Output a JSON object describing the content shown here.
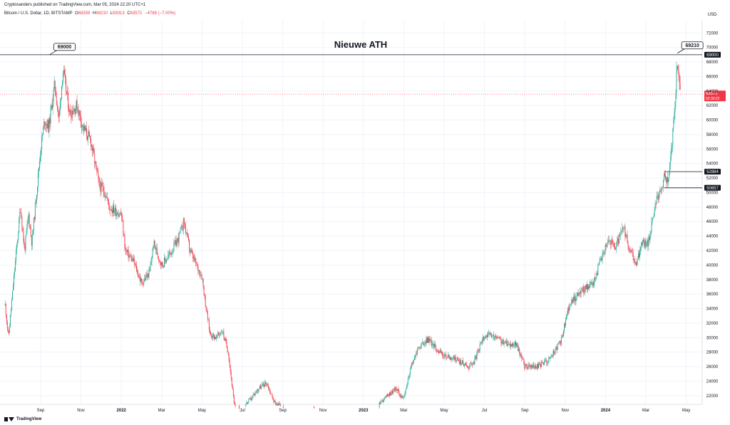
{
  "header": {
    "publisher": "Cryptosanders published on TradingView.com, Mar 05, 2024 22:20 UTC+1",
    "symbol": "Bitcoin / U.S. Dollar, 1D, BITSTAMP",
    "o_label": "O",
    "o_value": "68359",
    "h_label": "H",
    "h_value": "69210",
    "l_label": "L",
    "l_value": "59313",
    "c_label": "C",
    "c_value": "63571",
    "change": "−4788 (−7.00%)"
  },
  "footer": {
    "brand": "TradingView"
  },
  "chart_data": {
    "type": "candlestick",
    "title": "Nieuwe ATH",
    "currency_label": "USD",
    "y_ticks": [
      22000,
      24000,
      26000,
      28000,
      30000,
      32000,
      34000,
      36000,
      38000,
      40000,
      42000,
      44000,
      46000,
      48000,
      50000,
      52000,
      54000,
      56000,
      58000,
      60000,
      62000,
      64000,
      66000,
      68000,
      70000,
      72000
    ],
    "ylim": [
      20800,
      73800
    ],
    "x_ticks": [
      "Sep",
      "Nov",
      "2022",
      "Mar",
      "May",
      "Jul",
      "Sep",
      "Nov",
      "2023",
      "Mar",
      "May",
      "Jul",
      "Sep",
      "Nov",
      "2024",
      "Mar",
      "May"
    ],
    "callouts": [
      {
        "label": "69000",
        "value": 69000,
        "date_index": 0.22
      },
      {
        "label": "69210",
        "value": 69210,
        "date_index": 15.78
      }
    ],
    "horizontal_levels": [
      {
        "label": "69000",
        "value": 69000
      },
      {
        "label": "52884",
        "value": 52884
      },
      {
        "label": "50657",
        "value": 50657
      }
    ],
    "current_price": {
      "label": "63571",
      "countdown": "02:39:22",
      "value": 63571
    },
    "path_points": [
      [
        -0.88,
        34500
      ],
      [
        -0.8,
        30000
      ],
      [
        -0.7,
        36000
      ],
      [
        -0.5,
        48000
      ],
      [
        -0.4,
        42000
      ],
      [
        -0.3,
        47000
      ],
      [
        -0.22,
        43000
      ],
      [
        0.0,
        56000
      ],
      [
        0.1,
        60000
      ],
      [
        0.2,
        59000
      ],
      [
        0.35,
        65000
      ],
      [
        0.45,
        60000
      ],
      [
        0.55,
        67000
      ],
      [
        0.72,
        61000
      ],
      [
        0.9,
        62000
      ],
      [
        1.05,
        59000
      ],
      [
        1.25,
        57000
      ],
      [
        1.45,
        51000
      ],
      [
        1.6,
        50000
      ],
      [
        1.7,
        48000
      ],
      [
        2.0,
        47000
      ],
      [
        2.1,
        42000
      ],
      [
        2.3,
        40500
      ],
      [
        2.5,
        37500
      ],
      [
        2.7,
        39000
      ],
      [
        2.8,
        43000
      ],
      [
        3.0,
        40000
      ],
      [
        3.2,
        41500
      ],
      [
        3.4,
        43500
      ],
      [
        3.55,
        46000
      ],
      [
        3.7,
        42000
      ],
      [
        3.9,
        39500
      ],
      [
        4.0,
        38500
      ],
      [
        4.1,
        34000
      ],
      [
        4.2,
        30500
      ],
      [
        4.35,
        30000
      ],
      [
        4.5,
        31000
      ],
      [
        4.65,
        28000
      ],
      [
        4.8,
        20500
      ],
      [
        5.0,
        20300
      ],
      [
        5.2,
        21500
      ],
      [
        5.4,
        23000
      ],
      [
        5.6,
        23800
      ],
      [
        5.8,
        21000
      ],
      [
        6.1,
        20200
      ],
      [
        6.3,
        19800
      ],
      [
        6.6,
        19700
      ],
      [
        6.8,
        20500
      ],
      [
        7.1,
        19000
      ],
      [
        7.4,
        16800
      ],
      [
        7.8,
        16800
      ],
      [
        8.2,
        16600
      ],
      [
        8.4,
        21000
      ],
      [
        8.8,
        23000
      ],
      [
        9.0,
        21500
      ],
      [
        9.15,
        25500
      ],
      [
        9.35,
        28500
      ],
      [
        9.6,
        29800
      ],
      [
        9.8,
        28500
      ],
      [
        10.0,
        27500
      ],
      [
        10.3,
        27000
      ],
      [
        10.6,
        26000
      ],
      [
        10.75,
        26800
      ],
      [
        11.0,
        30400
      ],
      [
        11.3,
        30000
      ],
      [
        11.5,
        29200
      ],
      [
        11.8,
        29000
      ],
      [
        12.0,
        26000
      ],
      [
        12.3,
        26000
      ],
      [
        12.6,
        27000
      ],
      [
        12.9,
        29500
      ],
      [
        13.1,
        34500
      ],
      [
        13.4,
        36500
      ],
      [
        13.7,
        37500
      ],
      [
        13.9,
        41000
      ],
      [
        14.05,
        43500
      ],
      [
        14.25,
        42500
      ],
      [
        14.45,
        45000
      ],
      [
        14.6,
        42000
      ],
      [
        14.75,
        40000
      ],
      [
        14.9,
        43000
      ],
      [
        15.05,
        43000
      ],
      [
        15.2,
        47500
      ],
      [
        15.35,
        50500
      ],
      [
        15.45,
        52000
      ],
      [
        15.55,
        51500
      ],
      [
        15.65,
        57000
      ],
      [
        15.72,
        62000
      ],
      [
        15.78,
        68500
      ],
      [
        15.85,
        63571
      ]
    ]
  }
}
